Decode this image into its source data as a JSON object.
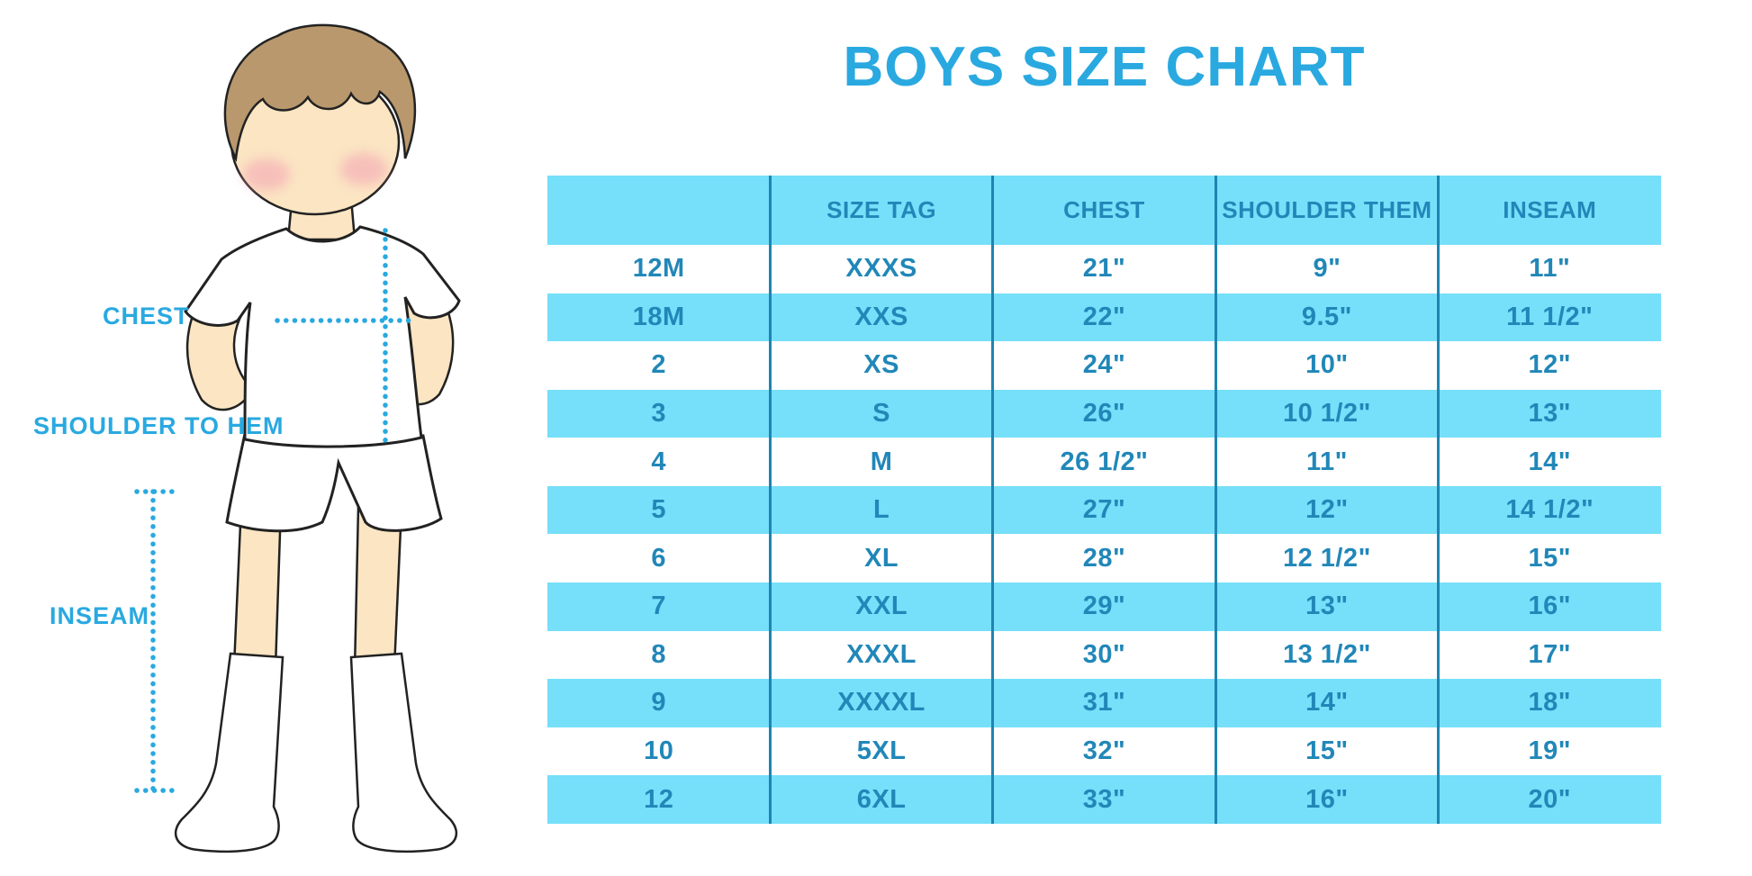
{
  "title": "BOYS SIZE CHART",
  "figure": {
    "illustration": "boy-front-standing",
    "labels": {
      "chest": "CHEST",
      "shoulder_to_hem": "SHOULDER TO HEM",
      "inseam": "INSEAM"
    }
  },
  "colors": {
    "accent_blue": "#29A9E0",
    "table_cyan": "#76DFFA",
    "table_text": "#2187B8",
    "divider": "#1E84B0",
    "skin": "#FBE5C2",
    "hair": "#B9986D",
    "cheek": "#F4A7B6"
  },
  "chart_data": {
    "type": "table",
    "title": "BOYS SIZE CHART",
    "columns": [
      "",
      "SIZE TAG",
      "CHEST",
      "SHOULDER THEM",
      "INSEAM"
    ],
    "rows": [
      [
        "12M",
        "XXXS",
        "21\"",
        "9\"",
        "11\""
      ],
      [
        "18M",
        "XXS",
        "22\"",
        "9.5\"",
        "11 1/2\""
      ],
      [
        "2",
        "XS",
        "24\"",
        "10\"",
        "12\""
      ],
      [
        "3",
        "S",
        "26\"",
        "10 1/2\"",
        "13\""
      ],
      [
        "4",
        "M",
        "26 1/2\"",
        "11\"",
        "14\""
      ],
      [
        "5",
        "L",
        "27\"",
        "12\"",
        "14 1/2\""
      ],
      [
        "6",
        "XL",
        "28\"",
        "12 1/2\"",
        "15\""
      ],
      [
        "7",
        "XXL",
        "29\"",
        "13\"",
        "16\""
      ],
      [
        "8",
        "XXXL",
        "30\"",
        "13 1/2\"",
        "17\""
      ],
      [
        "9",
        "XXXXL",
        "31\"",
        "14\"",
        "18\""
      ],
      [
        "10",
        "5XL",
        "32\"",
        "15\"",
        "19\""
      ],
      [
        "12",
        "6XL",
        "33\"",
        "16\"",
        "20\""
      ]
    ],
    "layout": {
      "header_background": "cyan",
      "row_stripes": "white/cyan alternating",
      "grid": "vertical dividers only"
    }
  }
}
